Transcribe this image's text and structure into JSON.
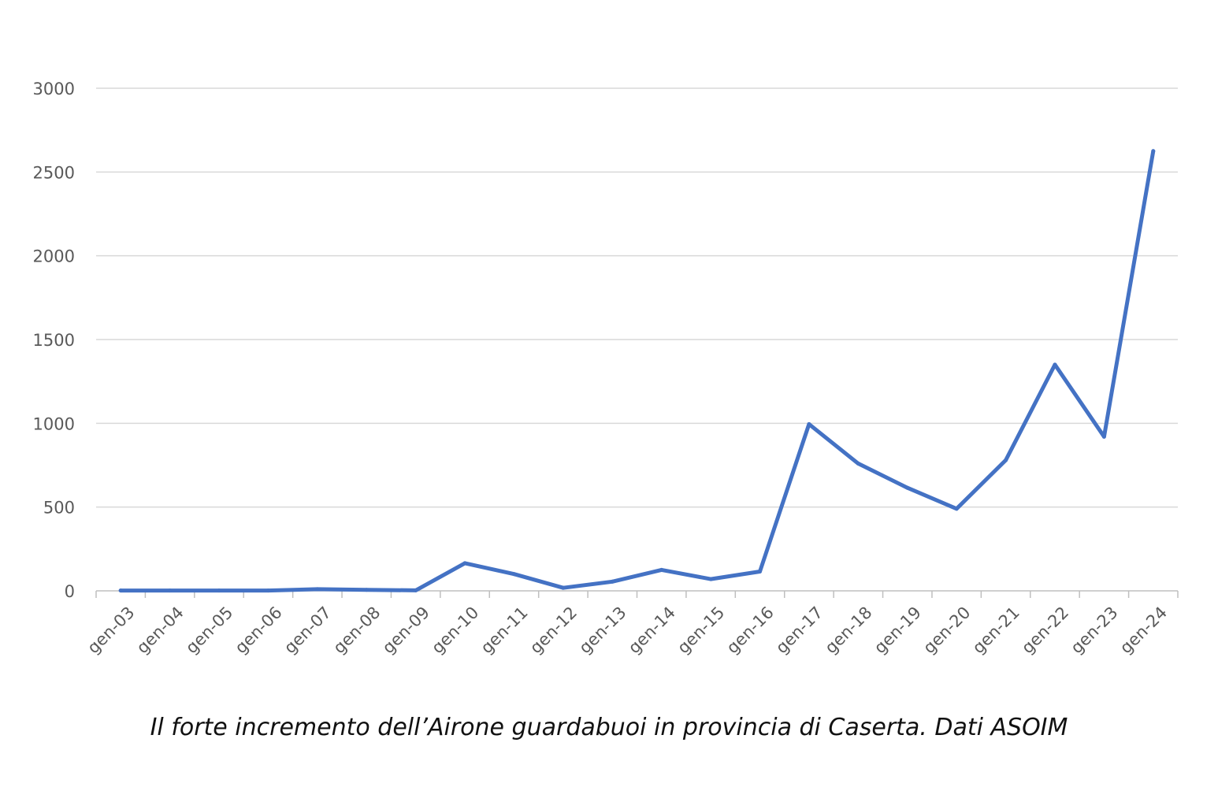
{
  "caption": "Il forte incremento dell’Airone guardabuoi in provincia di Caserta. Dati ASOIM",
  "chart_data": {
    "type": "line",
    "title": "",
    "xlabel": "",
    "ylabel": "",
    "categories": [
      "gen-03",
      "gen-04",
      "gen-05",
      "gen-06",
      "gen-07",
      "gen-08",
      "gen-09",
      "gen-10",
      "gen-11",
      "gen-12",
      "gen-13",
      "gen-14",
      "gen-15",
      "gen-16",
      "gen-17",
      "gen-18",
      "gen-19",
      "gen-20",
      "gen-21",
      "gen-22",
      "gen-23",
      "gen-24"
    ],
    "series": [
      {
        "values": [
          2,
          2,
          2,
          2,
          10,
          6,
          3,
          165,
          100,
          18,
          55,
          125,
          70,
          115,
          995,
          760,
          615,
          490,
          780,
          1350,
          920,
          2625
        ],
        "color": "#4472C4"
      }
    ],
    "yticks": [
      0,
      500,
      1000,
      1500,
      2000,
      2500,
      3000
    ],
    "ylim": [
      0,
      3000
    ],
    "grid": true,
    "legend": "none",
    "colors": {
      "line": "#4472C4",
      "grid": "#D9D9D9",
      "axis": "#BFBFBF",
      "tick_text": "#595959"
    }
  }
}
